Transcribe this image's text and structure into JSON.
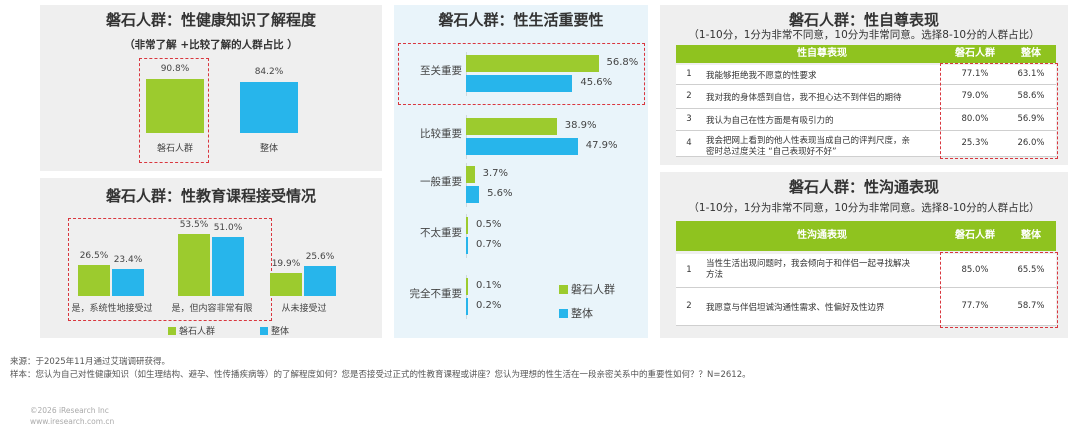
{
  "chart_data": [
    {
      "type": "bar",
      "title": "磐石人群：性健康知识了解程度",
      "subtitle": "（非常了解 +比较了解的人群占比 ）",
      "categories": [
        "磐石人群",
        "整体"
      ],
      "values": [
        90.8,
        84.2
      ],
      "value_labels": [
        "90.8%",
        "84.2%"
      ],
      "colors": [
        "#9ccb2e",
        "#27b5eb"
      ]
    },
    {
      "type": "bar",
      "title": "磐石人群：性教育课程接受情况",
      "categories": [
        "是，系统性地接受过",
        "是，但内容非常有限",
        "从未接受过"
      ],
      "series": [
        {
          "name": "磐石人群",
          "values": [
            26.5,
            53.5,
            19.9
          ],
          "labels": [
            "26.5%",
            "53.5%",
            "19.9%"
          ],
          "color": "#9ccb2e"
        },
        {
          "name": "整体",
          "values": [
            23.4,
            51.0,
            25.6
          ],
          "labels": [
            "23.4%",
            "51.0%",
            "25.6%"
          ],
          "color": "#27b5eb"
        }
      ],
      "legend": [
        "磐石人群",
        "整体"
      ]
    },
    {
      "type": "bar",
      "orientation": "horizontal",
      "title": "磐石人群：性生活重要性",
      "categories": [
        "至关重要",
        "比较重要",
        "一般重要",
        "不太重要",
        "完全不重要"
      ],
      "series": [
        {
          "name": "磐石人群",
          "values": [
            56.8,
            38.9,
            3.7,
            0.5,
            0.1
          ],
          "labels": [
            "56.8%",
            "38.9%",
            "3.7%",
            "0.5%",
            "0.1%"
          ],
          "color": "#9ccb2e"
        },
        {
          "name": "整体",
          "values": [
            45.6,
            47.9,
            5.6,
            0.7,
            0.2
          ],
          "labels": [
            "45.6%",
            "47.9%",
            "5.6%",
            "0.7%",
            "0.2%"
          ],
          "color": "#27b5eb"
        }
      ],
      "legend": [
        "磐石人群",
        "整体"
      ]
    },
    {
      "type": "table",
      "title": "磐石人群：性自尊表现",
      "subtitle": "（1-10分，1分为非常不同意，10分为非常同意。选择8-10分的人群占比）",
      "columns": [
        "性自尊表现",
        "磐石人群",
        "整体"
      ],
      "rows": [
        {
          "no": "1",
          "text": "我能够拒绝我不愿意的性要求",
          "a": "77.1%",
          "b": "63.1%"
        },
        {
          "no": "2",
          "text": "我对我的身体感到自信，我不担心达不到伴侣的期待",
          "a": "79.0%",
          "b": "58.6%"
        },
        {
          "no": "3",
          "text": "我认为自己在性方面是有吸引力的",
          "a": "80.0%",
          "b": "56.9%"
        },
        {
          "no": "4",
          "text": "我会把网上看到的他人性表现当成自己的评判尺度，亲",
          "text2": "密时总过度关注 “自己表现好不好”",
          "a": "25.3%",
          "b": "26.0%"
        }
      ]
    },
    {
      "type": "table",
      "title": "磐石人群：性沟通表现",
      "subtitle": "（1-10分，1分为非常不同意，10分为非常同意。选择8-10分的人群占比）",
      "columns": [
        "性沟通表现",
        "磐石人群",
        "整体"
      ],
      "rows": [
        {
          "no": "1",
          "text": "当性生活出现问题时，我会倾向于和伴侣一起寻找解决",
          "text2": "方法",
          "a": "85.0%",
          "b": "65.5%"
        },
        {
          "no": "2",
          "text": "我愿意与伴侣坦诚沟通性需求、性偏好及性边界",
          "a": "77.7%",
          "b": "58.7%"
        }
      ]
    }
  ],
  "footer": {
    "source": "来源：于2025年11月通过艾瑞调研获得。",
    "sample": "样本：您认为自己对性健康知识（如生理结构、避孕、性传播疾病等）的了解程度如何？您是否接受过正式的性教育课程或讲座？您认为理想的性生活在一段亲密关系中的重要性如何？？N=2612。",
    "copyright": "©2026 iResearch Inc",
    "website": "www.iresearch.com.cn"
  }
}
